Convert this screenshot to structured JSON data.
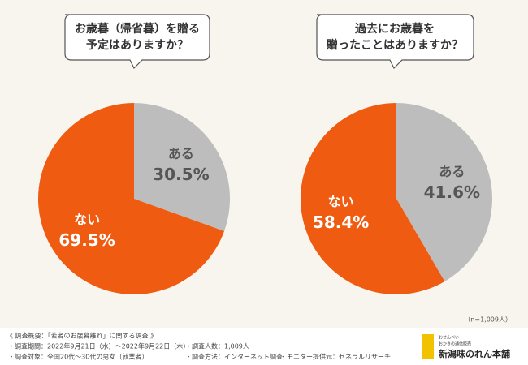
{
  "chart_data": [
    {
      "type": "pie",
      "title": [
        "お歳暮（帰省暮）を贈る",
        "予定はありますか？"
      ],
      "categories": [
        "ある",
        "ない"
      ],
      "values": [
        30.5,
        69.5
      ],
      "value_labels": [
        "30.5%",
        "69.5%"
      ],
      "colors": [
        "#bdbdbd",
        "#ef5b10"
      ],
      "label_colors": [
        "#555555",
        "#ffffff"
      ]
    },
    {
      "type": "pie",
      "title": [
        "過去にお歳暮を",
        "贈ったことはありますか？"
      ],
      "categories": [
        "ある",
        "ない"
      ],
      "values": [
        41.6,
        58.4
      ],
      "value_labels": [
        "41.6%",
        "58.4%"
      ],
      "colors": [
        "#bdbdbd",
        "#ef5b10"
      ],
      "label_colors": [
        "#555555",
        "#ffffff"
      ]
    }
  ],
  "note": "（n=1,009人）",
  "survey": {
    "heading": "《 調査概要：「若者のお歳暮離れ」に関する調査 》",
    "items": [
      "・調査期間：2022年9月21日（水）〜2022年9月22日（木）",
      "・調査人数：1,009人",
      "・調査対象：全国20代〜30代の男女（就業者）",
      "・調査方法：インターネット調査",
      "・モニター提供元：ゼネラルリサーチ"
    ]
  },
  "logo": {
    "line1": "おせんべい",
    "line2": "おかきの通信販売",
    "name": "新潟味のれん本舗"
  }
}
